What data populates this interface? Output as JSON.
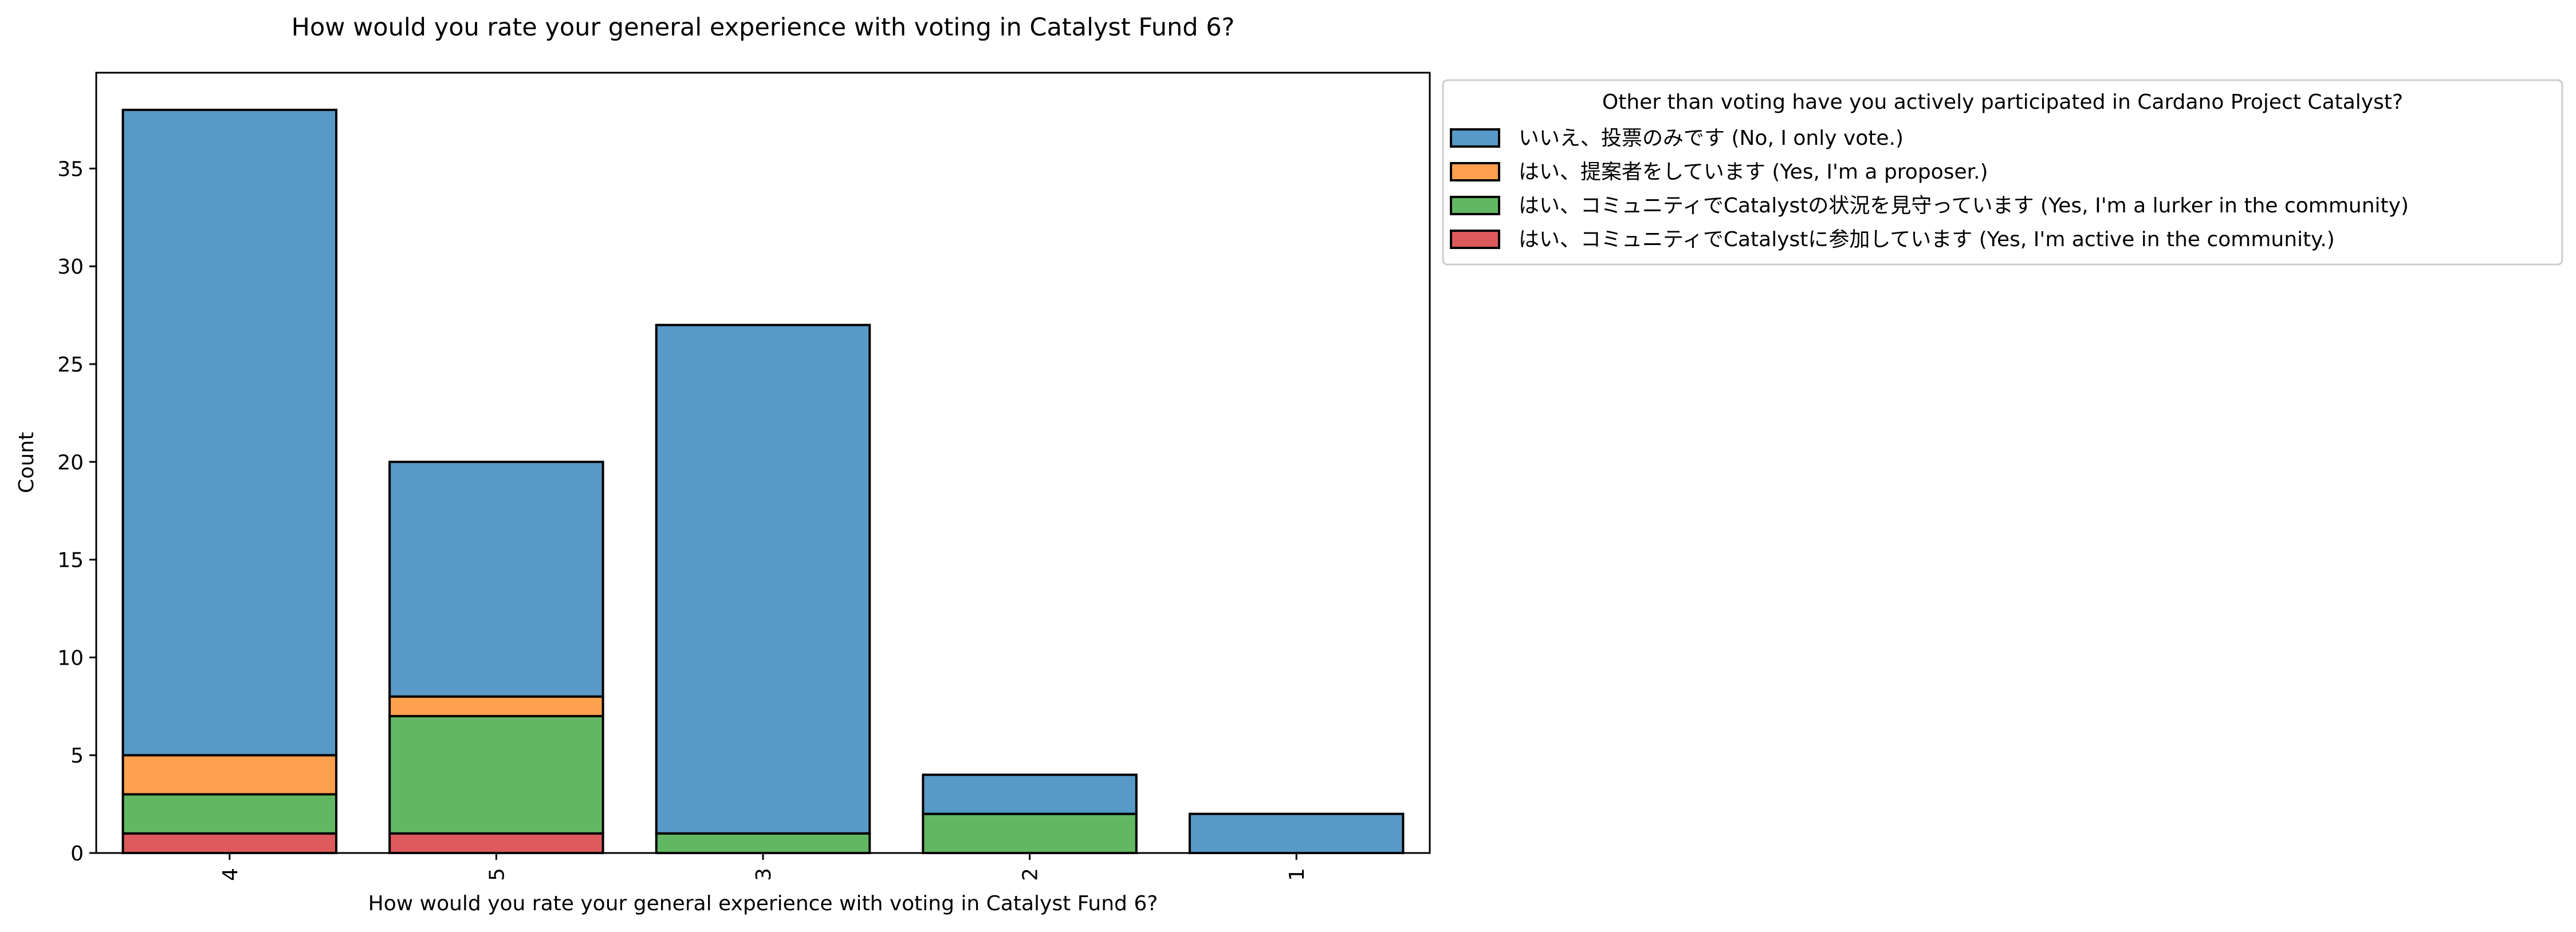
{
  "chart_data": {
    "type": "bar",
    "stacked": true,
    "title": "How would you rate your general experience with voting in Catalyst Fund 6?",
    "xlabel": "How would you rate your general experience with voting in Catalyst Fund 6?",
    "ylabel": "Count",
    "categories": [
      "4",
      "5",
      "3",
      "2",
      "1"
    ],
    "ylim": [
      0,
      39.9
    ],
    "yticks": [
      0,
      5,
      10,
      15,
      20,
      25,
      30,
      35
    ],
    "grid": false,
    "legend": {
      "title": "Other than voting have you actively participated in Cardano Project Catalyst?",
      "placement": "outside-top-right"
    },
    "series": [
      {
        "name": "いいえ、投票のみです (No, I only vote.)",
        "color": "#5799c7",
        "values": [
          33,
          12,
          26,
          2,
          2
        ]
      },
      {
        "name": "はい、提案者をしています (Yes, I'm a proposer.)",
        "color": "#ffa04f",
        "values": [
          2,
          1,
          0,
          0,
          0
        ]
      },
      {
        "name": "はい、コミュニティでCatalystの状況を見守っています (Yes, I'm a lurker in the community)",
        "color": "#62b862",
        "values": [
          2,
          6,
          1,
          2,
          0
        ]
      },
      {
        "name": "はい、コミュニティでCatalystに参加しています (Yes, I'm active in the community.)",
        "color": "#dc5a5b",
        "values": [
          1,
          1,
          0,
          0,
          0
        ]
      }
    ]
  }
}
